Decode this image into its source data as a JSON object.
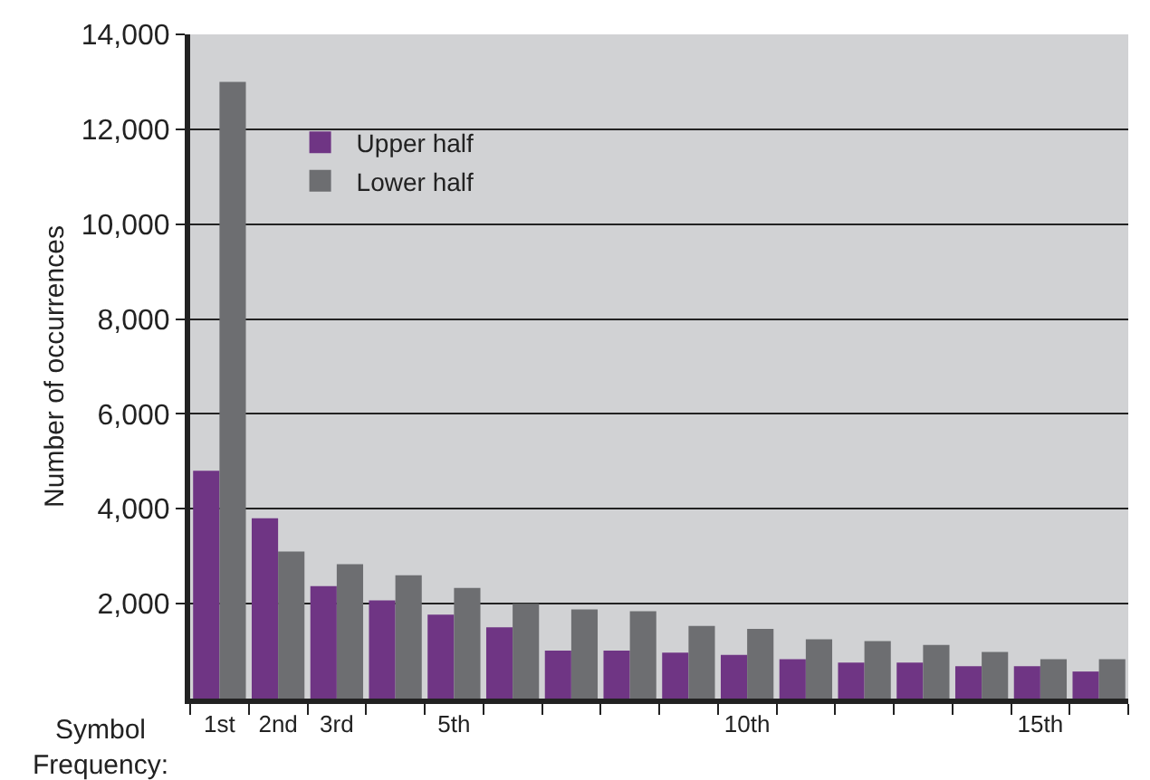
{
  "chart_data": {
    "type": "bar",
    "xlabel": "Symbol\nFrequency:",
    "ylabel": "Number of occurrences",
    "categories": [
      "1st",
      "2nd",
      "3rd",
      null,
      "5th",
      null,
      null,
      null,
      null,
      "10th",
      null,
      null,
      null,
      null,
      "15th",
      null
    ],
    "series": [
      {
        "name": "Upper half",
        "color": "#6f3584",
        "values": [
          4800,
          3800,
          2370,
          2070,
          1770,
          1500,
          1010,
          1010,
          970,
          920,
          830,
          760,
          760,
          680,
          680,
          570
        ]
      },
      {
        "name": "Lower half",
        "color": "#6d6e71",
        "values": [
          13000,
          3100,
          2830,
          2600,
          2330,
          2000,
          1880,
          1840,
          1530,
          1470,
          1250,
          1210,
          1130,
          980,
          830,
          830
        ]
      }
    ],
    "ylim": [
      0,
      14000
    ],
    "yticks": [
      {
        "value": 2000,
        "label": "2,000"
      },
      {
        "value": 4000,
        "label": "4,000"
      },
      {
        "value": 6000,
        "label": "6,000"
      },
      {
        "value": 8000,
        "label": "8,000"
      },
      {
        "value": 10000,
        "label": "10,000"
      },
      {
        "value": 12000,
        "label": "12,000"
      },
      {
        "value": 14000,
        "label": "14,000"
      }
    ],
    "grid": "y",
    "legend": "top left"
  }
}
